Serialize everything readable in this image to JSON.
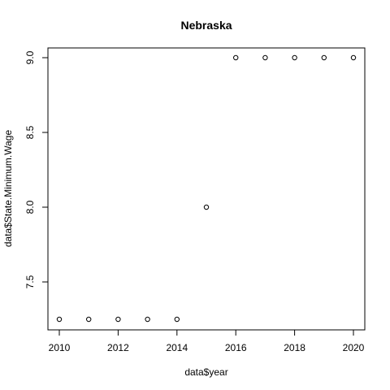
{
  "chart_data": {
    "type": "scatter",
    "title": "Nebraska",
    "xlabel": "data$year",
    "ylabel": "data$State.Minimum.Wage",
    "x": [
      2010,
      2011,
      2012,
      2013,
      2014,
      2015,
      2016,
      2017,
      2018,
      2019,
      2020
    ],
    "y": [
      7.25,
      7.25,
      7.25,
      7.25,
      7.25,
      8.0,
      9.0,
      9.0,
      9.0,
      9.0,
      9.0
    ],
    "xlim": [
      2010,
      2020
    ],
    "ylim": [
      7.25,
      9.0
    ],
    "xticks": [
      "2010",
      "2012",
      "2014",
      "2016",
      "2018",
      "2020"
    ],
    "yticks": [
      "7.5",
      "8.0",
      "8.5",
      "9.0"
    ],
    "grid": false,
    "marker": "open-circle"
  }
}
